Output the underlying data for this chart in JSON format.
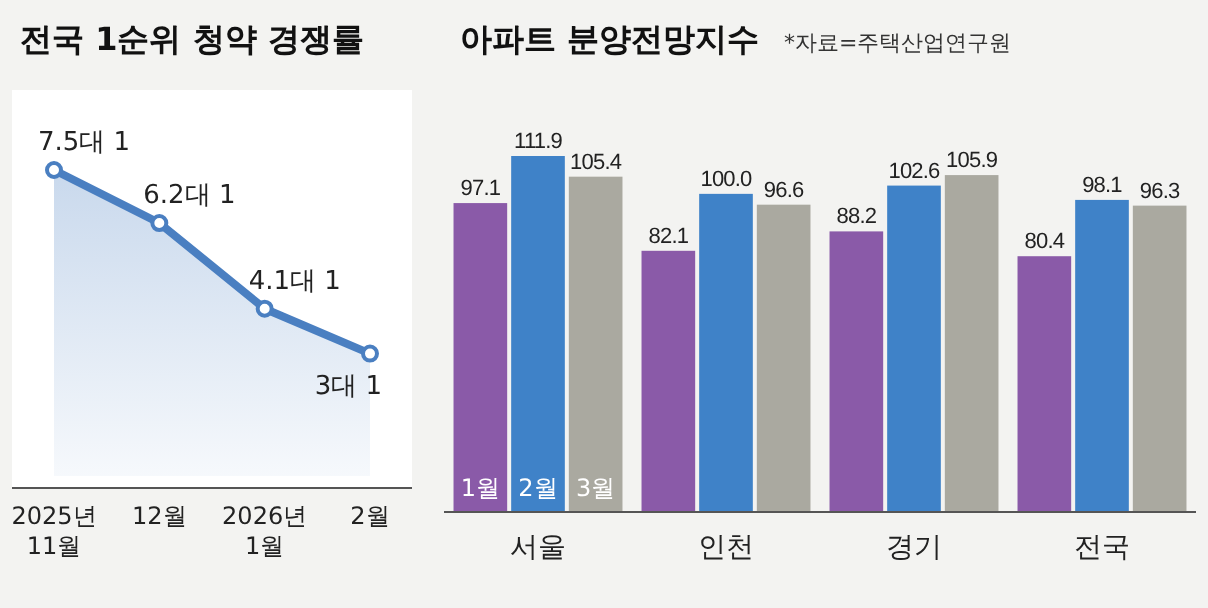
{
  "chart_data": [
    {
      "type": "area",
      "title": "전국 1순위 청약 경쟁률",
      "categories": [
        "2025년 11월",
        "12월",
        "2026년 1월",
        "2월"
      ],
      "series": [
        {
          "color": "#4a7fc1",
          "values": [
            7.5,
            6.2,
            4.1,
            3
          ],
          "value_labels": [
            "7.5대 1",
            "6.2대 1",
            "4.1대 1",
            "3대 1"
          ]
        }
      ],
      "marker": "circle"
    },
    {
      "type": "bar",
      "title": "아파트 분양전망지수",
      "subtitle": "*자료=주택산업연구원",
      "categories": [
        "서울",
        "인천",
        "경기",
        "전국"
      ],
      "series": [
        {
          "name": "1월",
          "color": "#8a5aa8",
          "values": [
            97.1,
            82.1,
            88.2,
            80.4
          ],
          "value_labels": [
            "97.1",
            "82.1",
            "88.2",
            "80.4"
          ]
        },
        {
          "name": "2월",
          "color": "#3f82c8",
          "values": [
            111.9,
            100.0,
            102.6,
            98.1
          ],
          "value_labels": [
            "111.9",
            "100.0",
            "102.6",
            "98.1"
          ]
        },
        {
          "name": "3월",
          "color": "#aaa9a0",
          "values": [
            105.4,
            96.6,
            105.9,
            96.3
          ],
          "value_labels": [
            "105.4",
            "96.6",
            "105.9",
            "96.3"
          ]
        }
      ]
    }
  ]
}
